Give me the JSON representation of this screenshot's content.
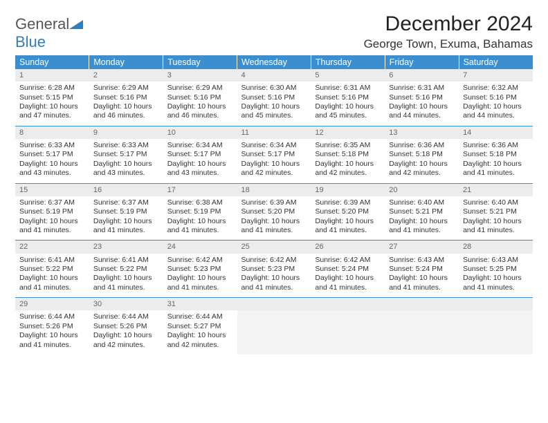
{
  "logo": {
    "general": "General",
    "blue": "Blue"
  },
  "title": "December 2024",
  "location": "George Town, Exuma, Bahamas",
  "colors": {
    "headerBlue": "#3c8ecf",
    "logoBlue": "#2d7fc1",
    "dayBg": "#ececec",
    "emptyBg": "#f4f4f4",
    "borderBlue": "#3c8ecf"
  },
  "dayHeaders": [
    "Sunday",
    "Monday",
    "Tuesday",
    "Wednesday",
    "Thursday",
    "Friday",
    "Saturday"
  ],
  "weeks": [
    [
      {
        "n": "1",
        "sr": "6:28 AM",
        "ss": "5:15 PM",
        "dl": "10 hours and 47 minutes."
      },
      {
        "n": "2",
        "sr": "6:29 AM",
        "ss": "5:16 PM",
        "dl": "10 hours and 46 minutes."
      },
      {
        "n": "3",
        "sr": "6:29 AM",
        "ss": "5:16 PM",
        "dl": "10 hours and 46 minutes."
      },
      {
        "n": "4",
        "sr": "6:30 AM",
        "ss": "5:16 PM",
        "dl": "10 hours and 45 minutes."
      },
      {
        "n": "5",
        "sr": "6:31 AM",
        "ss": "5:16 PM",
        "dl": "10 hours and 45 minutes."
      },
      {
        "n": "6",
        "sr": "6:31 AM",
        "ss": "5:16 PM",
        "dl": "10 hours and 44 minutes."
      },
      {
        "n": "7",
        "sr": "6:32 AM",
        "ss": "5:16 PM",
        "dl": "10 hours and 44 minutes."
      }
    ],
    [
      {
        "n": "8",
        "sr": "6:33 AM",
        "ss": "5:17 PM",
        "dl": "10 hours and 43 minutes."
      },
      {
        "n": "9",
        "sr": "6:33 AM",
        "ss": "5:17 PM",
        "dl": "10 hours and 43 minutes."
      },
      {
        "n": "10",
        "sr": "6:34 AM",
        "ss": "5:17 PM",
        "dl": "10 hours and 43 minutes."
      },
      {
        "n": "11",
        "sr": "6:34 AM",
        "ss": "5:17 PM",
        "dl": "10 hours and 42 minutes."
      },
      {
        "n": "12",
        "sr": "6:35 AM",
        "ss": "5:18 PM",
        "dl": "10 hours and 42 minutes."
      },
      {
        "n": "13",
        "sr": "6:36 AM",
        "ss": "5:18 PM",
        "dl": "10 hours and 42 minutes."
      },
      {
        "n": "14",
        "sr": "6:36 AM",
        "ss": "5:18 PM",
        "dl": "10 hours and 41 minutes."
      }
    ],
    [
      {
        "n": "15",
        "sr": "6:37 AM",
        "ss": "5:19 PM",
        "dl": "10 hours and 41 minutes."
      },
      {
        "n": "16",
        "sr": "6:37 AM",
        "ss": "5:19 PM",
        "dl": "10 hours and 41 minutes."
      },
      {
        "n": "17",
        "sr": "6:38 AM",
        "ss": "5:19 PM",
        "dl": "10 hours and 41 minutes."
      },
      {
        "n": "18",
        "sr": "6:39 AM",
        "ss": "5:20 PM",
        "dl": "10 hours and 41 minutes."
      },
      {
        "n": "19",
        "sr": "6:39 AM",
        "ss": "5:20 PM",
        "dl": "10 hours and 41 minutes."
      },
      {
        "n": "20",
        "sr": "6:40 AM",
        "ss": "5:21 PM",
        "dl": "10 hours and 41 minutes."
      },
      {
        "n": "21",
        "sr": "6:40 AM",
        "ss": "5:21 PM",
        "dl": "10 hours and 41 minutes."
      }
    ],
    [
      {
        "n": "22",
        "sr": "6:41 AM",
        "ss": "5:22 PM",
        "dl": "10 hours and 41 minutes."
      },
      {
        "n": "23",
        "sr": "6:41 AM",
        "ss": "5:22 PM",
        "dl": "10 hours and 41 minutes."
      },
      {
        "n": "24",
        "sr": "6:42 AM",
        "ss": "5:23 PM",
        "dl": "10 hours and 41 minutes."
      },
      {
        "n": "25",
        "sr": "6:42 AM",
        "ss": "5:23 PM",
        "dl": "10 hours and 41 minutes."
      },
      {
        "n": "26",
        "sr": "6:42 AM",
        "ss": "5:24 PM",
        "dl": "10 hours and 41 minutes."
      },
      {
        "n": "27",
        "sr": "6:43 AM",
        "ss": "5:24 PM",
        "dl": "10 hours and 41 minutes."
      },
      {
        "n": "28",
        "sr": "6:43 AM",
        "ss": "5:25 PM",
        "dl": "10 hours and 41 minutes."
      }
    ],
    [
      {
        "n": "29",
        "sr": "6:44 AM",
        "ss": "5:26 PM",
        "dl": "10 hours and 41 minutes."
      },
      {
        "n": "30",
        "sr": "6:44 AM",
        "ss": "5:26 PM",
        "dl": "10 hours and 42 minutes."
      },
      {
        "n": "31",
        "sr": "6:44 AM",
        "ss": "5:27 PM",
        "dl": "10 hours and 42 minutes."
      },
      null,
      null,
      null,
      null
    ]
  ],
  "labels": {
    "sunrise": "Sunrise:",
    "sunset": "Sunset:",
    "daylight": "Daylight:"
  }
}
